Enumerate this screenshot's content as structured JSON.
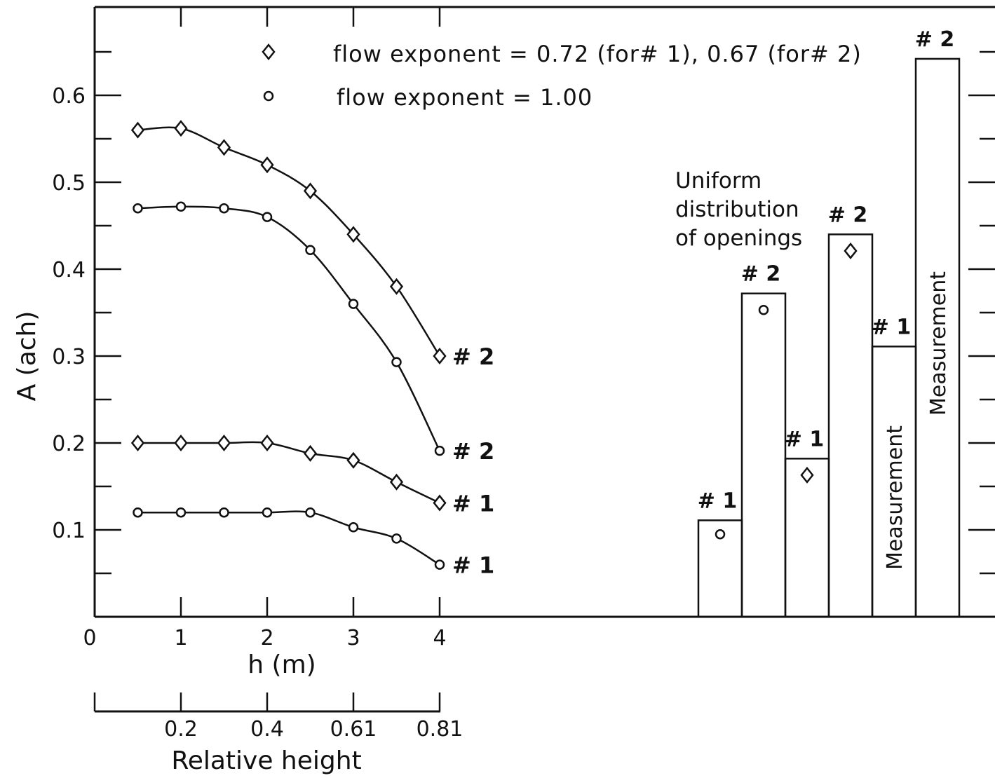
{
  "chart_data": {
    "type": "line",
    "ylabel": "A (ach)",
    "xlabel": "h (m)",
    "xlabel2": "Relative height",
    "ylim": [
      0,
      0.7
    ],
    "xlim": [
      0,
      4
    ],
    "y_tick_labels": [
      "0.1",
      "0.2",
      "0.3",
      "0.4",
      "0.5",
      "0.6"
    ],
    "y_tick_values": [
      0.1,
      0.2,
      0.3,
      0.4,
      0.5,
      0.6
    ],
    "x_tick_labels": [
      "0",
      "1",
      "2",
      "3",
      "4"
    ],
    "x_tick_values": [
      0,
      1,
      2,
      3,
      4
    ],
    "x2_tick_labels": [
      "0.2",
      "0.4",
      "0.61",
      "0.81"
    ],
    "x2_tick_values": [
      1,
      2,
      3,
      4
    ],
    "legend": [
      {
        "marker": "diamond",
        "text": "flow exponent  = 0.72 (for# 1), 0.67 (for# 2)"
      },
      {
        "marker": "circle",
        "text": "flow exponent  = 1.00"
      }
    ],
    "series": [
      {
        "marker": "diamond",
        "label": "# 2",
        "x": [
          0.5,
          1,
          1.5,
          2,
          2.5,
          3,
          3.5,
          4
        ],
        "y": [
          0.56,
          0.562,
          0.54,
          0.52,
          0.49,
          0.44,
          0.38,
          0.3
        ]
      },
      {
        "marker": "circle",
        "label": "# 2",
        "x": [
          0.5,
          1,
          1.5,
          2,
          2.5,
          3,
          3.5,
          4
        ],
        "y": [
          0.47,
          0.472,
          0.47,
          0.46,
          0.422,
          0.36,
          0.293,
          0.191
        ]
      },
      {
        "marker": "diamond",
        "label": "# 1",
        "x": [
          0.5,
          1,
          1.5,
          2,
          2.5,
          3,
          3.5,
          4
        ],
        "y": [
          0.2,
          0.2,
          0.2,
          0.2,
          0.188,
          0.18,
          0.155,
          0.131
        ]
      },
      {
        "marker": "circle",
        "label": "# 1",
        "x": [
          0.5,
          1,
          1.5,
          2,
          2.5,
          3,
          3.5,
          4
        ],
        "y": [
          0.12,
          0.12,
          0.12,
          0.12,
          0.12,
          0.103,
          0.09,
          0.06
        ]
      }
    ],
    "uniform_note": [
      "Uniform",
      "distribution",
      "of openings"
    ],
    "bars": [
      {
        "label": "# 1",
        "value": 0.111,
        "marker": "circle",
        "marker_value": 0.095
      },
      {
        "label": "# 2",
        "value": 0.372,
        "marker": "circle",
        "marker_value": 0.353
      },
      {
        "label": "# 1",
        "value": 0.182,
        "marker": "diamond",
        "marker_value": 0.163
      },
      {
        "label": "# 2",
        "value": 0.44,
        "marker": "diamond",
        "marker_value": 0.421
      },
      {
        "label": "# 1",
        "value": 0.311,
        "text": "Measurement"
      },
      {
        "label": "# 2",
        "value": 0.642,
        "text": "Measurement"
      }
    ]
  }
}
